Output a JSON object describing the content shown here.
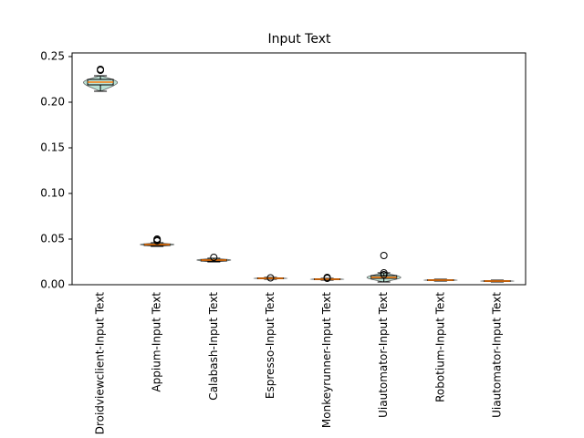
{
  "chart_data": {
    "type": "violin-box",
    "title": "Input Text",
    "categories": [
      "Droidviewclient-Input Text",
      "Appium-Input Text",
      "Calabash-Input Text",
      "Espresso-Input Text",
      "Monkeyrunner-Input Text",
      "Uiautomator-Input Text",
      "Robotium-Input Text",
      "Uiautomator-Input Text"
    ],
    "boxes": [
      {
        "median": 0.222,
        "q1": 0.219,
        "q3": 0.225,
        "whislo": 0.212,
        "whishi": 0.229,
        "fliers": [
          0.235,
          0.236
        ]
      },
      {
        "median": 0.044,
        "q1": 0.043,
        "q3": 0.0445,
        "whislo": 0.042,
        "whishi": 0.046,
        "fliers": [
          0.048,
          0.049,
          0.05
        ]
      },
      {
        "median": 0.027,
        "q1": 0.026,
        "q3": 0.0275,
        "whislo": 0.025,
        "whishi": 0.029,
        "fliers": [
          0.03
        ]
      },
      {
        "median": 0.007,
        "q1": 0.0065,
        "q3": 0.0075,
        "whislo": 0.006,
        "whishi": 0.008,
        "fliers": [
          0.0075
        ]
      },
      {
        "median": 0.006,
        "q1": 0.0055,
        "q3": 0.0065,
        "whislo": 0.005,
        "whishi": 0.007,
        "fliers": [
          0.007,
          0.008
        ]
      },
      {
        "median": 0.008,
        "q1": 0.007,
        "q3": 0.01,
        "whislo": 0.003,
        "whishi": 0.013,
        "fliers": [
          0.011,
          0.013,
          0.032
        ]
      },
      {
        "median": 0.005,
        "q1": 0.0045,
        "q3": 0.0055,
        "whislo": 0.004,
        "whishi": 0.006,
        "fliers": []
      },
      {
        "median": 0.004,
        "q1": 0.0035,
        "q3": 0.0045,
        "whislo": 0.003,
        "whishi": 0.005,
        "fliers": []
      }
    ],
    "violin_color": "#a9d9c9",
    "median_color": "#ff7f0e",
    "ylim": [
      0,
      0.254
    ],
    "yticks": [
      {
        "value": 0,
        "label": "0.00"
      },
      {
        "value": 0.05,
        "label": "0.05"
      },
      {
        "value": 0.1,
        "label": "0.10"
      },
      {
        "value": 0.15,
        "label": "0.15"
      },
      {
        "value": 0.2,
        "label": "0.20"
      },
      {
        "value": 0.25,
        "label": "0.25"
      }
    ]
  }
}
